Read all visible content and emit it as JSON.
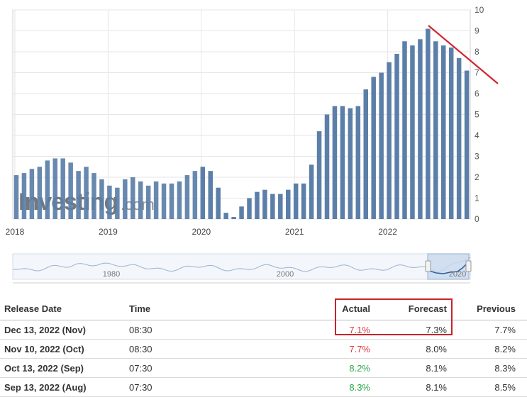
{
  "chart_data": {
    "type": "bar",
    "watermark": "Investing.com",
    "x_tick_labels": [
      "2018",
      "2019",
      "2020",
      "2021",
      "2022"
    ],
    "ylim": [
      0,
      10
    ],
    "y_ticks": [
      0,
      1,
      2,
      3,
      4,
      5,
      6,
      7,
      8,
      9,
      10
    ],
    "grid": true,
    "colors": {
      "bar": "#5b7fa8",
      "trend_line": "#d22630",
      "grid": "#e6e6e6"
    },
    "series": [
      {
        "categories": [
          "2018-01",
          "2018-02",
          "2018-03",
          "2018-04",
          "2018-05",
          "2018-06",
          "2018-07",
          "2018-08",
          "2018-09",
          "2018-10",
          "2018-11",
          "2018-12",
          "2019-01",
          "2019-02",
          "2019-03",
          "2019-04",
          "2019-05",
          "2019-06",
          "2019-07",
          "2019-08",
          "2019-09",
          "2019-10",
          "2019-11",
          "2019-12",
          "2020-01",
          "2020-02",
          "2020-03",
          "2020-04",
          "2020-05",
          "2020-06",
          "2020-07",
          "2020-08",
          "2020-09",
          "2020-10",
          "2020-11",
          "2020-12",
          "2021-01",
          "2021-02",
          "2021-03",
          "2021-04",
          "2021-05",
          "2021-06",
          "2021-07",
          "2021-08",
          "2021-09",
          "2021-10",
          "2021-11",
          "2021-12",
          "2022-01",
          "2022-02",
          "2022-03",
          "2022-04",
          "2022-05",
          "2022-06",
          "2022-07",
          "2022-08",
          "2022-09",
          "2022-10",
          "2022-11"
        ],
        "values": [
          2.1,
          2.2,
          2.4,
          2.5,
          2.8,
          2.9,
          2.9,
          2.7,
          2.3,
          2.5,
          2.2,
          1.9,
          1.6,
          1.5,
          1.9,
          2.0,
          1.8,
          1.6,
          1.8,
          1.7,
          1.7,
          1.8,
          2.1,
          2.3,
          2.5,
          2.3,
          1.5,
          0.3,
          0.1,
          0.6,
          1.0,
          1.3,
          1.4,
          1.2,
          1.2,
          1.4,
          1.7,
          1.7,
          2.6,
          4.2,
          5.0,
          5.4,
          5.4,
          5.3,
          5.4,
          6.2,
          6.8,
          7.0,
          7.5,
          7.9,
          8.5,
          8.3,
          8.6,
          9.1,
          8.5,
          8.3,
          8.2,
          7.7,
          7.1
        ]
      }
    ],
    "navigator": {
      "labels": [
        "1980",
        "2000",
        "2020"
      ]
    }
  },
  "table": {
    "headers": {
      "date": "Release Date",
      "time": "Time",
      "actual": "Actual",
      "forecast": "Forecast",
      "previous": "Previous"
    },
    "rows": [
      {
        "date": "Dec 13, 2022 (Nov)",
        "time": "08:30",
        "actual": "7.1%",
        "actual_color": "#e0383e",
        "forecast": "7.3%",
        "previous": "7.7%"
      },
      {
        "date": "Nov 10, 2022 (Oct)",
        "time": "08:30",
        "actual": "7.7%",
        "actual_color": "#e0383e",
        "forecast": "8.0%",
        "previous": "8.2%"
      },
      {
        "date": "Oct 13, 2022 (Sep)",
        "time": "07:30",
        "actual": "8.2%",
        "actual_color": "#2aa846",
        "forecast": "8.1%",
        "previous": "8.3%"
      },
      {
        "date": "Sep 13, 2022 (Aug)",
        "time": "07:30",
        "actual": "8.3%",
        "actual_color": "#2aa846",
        "forecast": "8.1%",
        "previous": "8.5%"
      }
    ]
  }
}
